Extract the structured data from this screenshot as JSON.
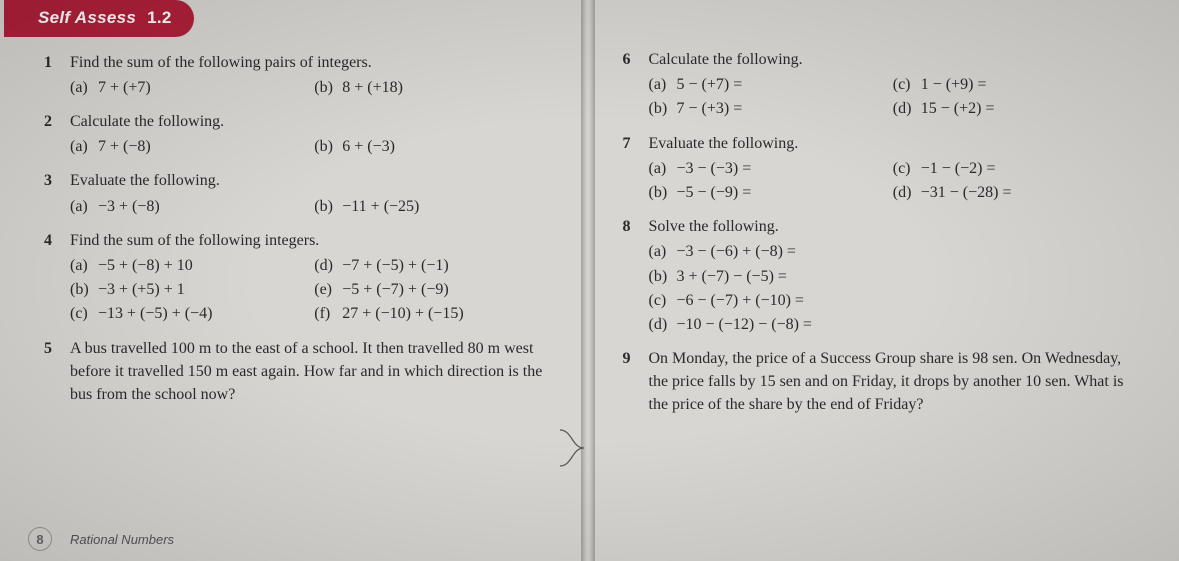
{
  "badge": {
    "title": "Self Assess",
    "number": "1.2"
  },
  "colors": {
    "badge_bg": "#b0203a",
    "badge_fg": "#ffffff",
    "page_bg": "#d8d6d2",
    "text": "#2a2a2a"
  },
  "footer": {
    "page": "8",
    "title": "Rational Numbers"
  },
  "left": [
    {
      "n": "1",
      "stem": "Find the sum of the following pairs of integers.",
      "layout": "twocol",
      "parts": [
        {
          "l": "(a)",
          "e": "7 + (+7)"
        },
        {
          "l": "(b)",
          "e": "8 + (+18)"
        }
      ]
    },
    {
      "n": "2",
      "stem": "Calculate the following.",
      "layout": "twocol",
      "parts": [
        {
          "l": "(a)",
          "e": "7 + (−8)"
        },
        {
          "l": "(b)",
          "e": "6 + (−3)"
        }
      ]
    },
    {
      "n": "3",
      "stem": "Evaluate the following.",
      "layout": "twocol",
      "parts": [
        {
          "l": "(a)",
          "e": "−3 + (−8)"
        },
        {
          "l": "(b)",
          "e": "−11 + (−25)"
        }
      ]
    },
    {
      "n": "4",
      "stem": "Find the sum of the following integers.",
      "layout": "twocol-eq",
      "parts": [
        {
          "l": "(a)",
          "e": "−5 + (−8) + 10"
        },
        {
          "l": "(d)",
          "e": "−7 + (−5) + (−1)"
        },
        {
          "l": "(b)",
          "e": "−3 + (+5) + 1"
        },
        {
          "l": "(e)",
          "e": "−5 + (−7) + (−9)"
        },
        {
          "l": "(c)",
          "e": "−13 + (−5) + (−4)"
        },
        {
          "l": "(f)",
          "e": "27 + (−10) + (−15)"
        }
      ]
    },
    {
      "n": "5",
      "stem": "A bus travelled 100 m to the east of a school. It then travelled 80 m west before it travelled 150 m east again. How far and in which direction is the bus from the school now?",
      "layout": "para",
      "parts": []
    }
  ],
  "right": [
    {
      "n": "6",
      "stem": "Calculate the following.",
      "layout": "fourcol",
      "parts": [
        {
          "l": "(a)",
          "e": "5 − (+7) ="
        },
        {
          "l": "(c)",
          "e": "1 − (+9) ="
        },
        {
          "l": "(b)",
          "e": "7 − (+3) ="
        },
        {
          "l": "(d)",
          "e": "15 − (+2) ="
        }
      ]
    },
    {
      "n": "7",
      "stem": "Evaluate the following.",
      "layout": "fourcol",
      "parts": [
        {
          "l": "(a)",
          "e": "−3 − (−3) ="
        },
        {
          "l": "(c)",
          "e": "−1 − (−2) ="
        },
        {
          "l": "(b)",
          "e": "−5 − (−9) ="
        },
        {
          "l": "(d)",
          "e": "−31 − (−28) ="
        }
      ]
    },
    {
      "n": "8",
      "stem": "Solve the following.",
      "layout": "onecol",
      "parts": [
        {
          "l": "(a)",
          "e": "−3 − (−6) + (−8) ="
        },
        {
          "l": "(b)",
          "e": "3 + (−7) − (−5) ="
        },
        {
          "l": "(c)",
          "e": "−6 − (−7) + (−10) ="
        },
        {
          "l": "(d)",
          "e": "−10 − (−12) − (−8) ="
        }
      ]
    },
    {
      "n": "9",
      "stem": "On Monday, the price of a Success Group share is 98 sen. On Wednesday, the price falls by 15 sen and on Friday, it drops by another 10 sen. What is the price of the share by the end of Friday?",
      "layout": "para",
      "parts": []
    }
  ]
}
